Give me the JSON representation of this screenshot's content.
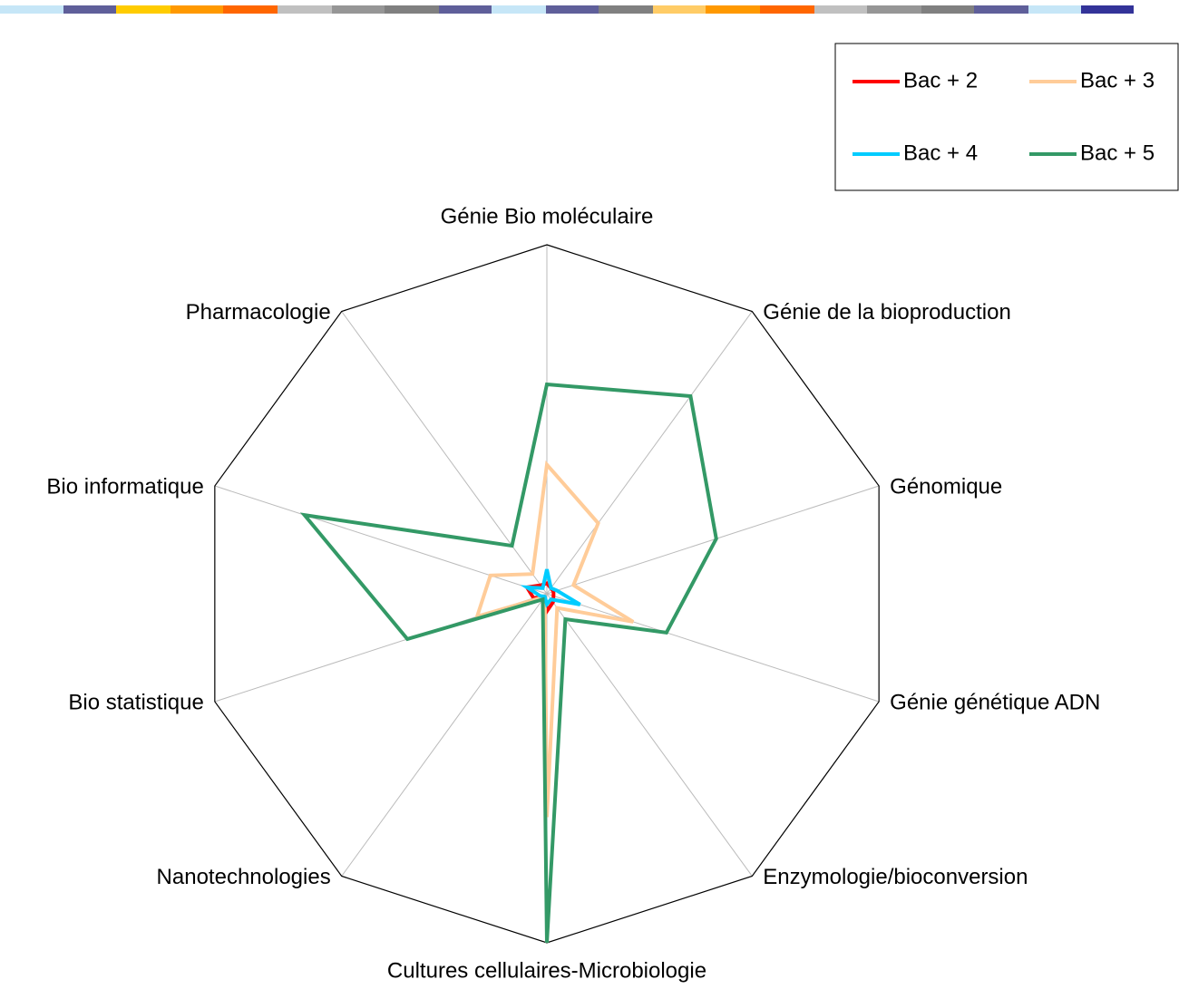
{
  "chart_data": {
    "type": "radar",
    "categories": [
      "Génie Bio moléculaire",
      "Génie de la bioproduction",
      "Génomique",
      "Génie génétique ADN",
      "Enzymologie/bioconversion",
      "Cultures cellulaires-Microbiologie",
      "Nanotechnologies",
      "Bio statistique",
      "Bio informatique",
      "Pharmacologie"
    ],
    "series": [
      {
        "name": "Bac + 2",
        "color": "#ff0000",
        "values": [
          3,
          2,
          2,
          2,
          3,
          5,
          1,
          4,
          6,
          3
        ]
      },
      {
        "name": "Bac + 3",
        "color": "#ffcc99",
        "values": [
          37,
          25,
          8,
          26,
          5,
          64,
          1,
          21,
          17,
          7
        ]
      },
      {
        "name": "Bac + 4",
        "color": "#00ccff",
        "values": [
          7,
          2,
          3,
          10,
          2,
          3,
          1,
          2,
          6,
          2
        ]
      },
      {
        "name": "Bac + 5",
        "color": "#339966",
        "values": [
          60,
          70,
          51,
          36,
          9,
          100,
          2,
          42,
          73,
          17
        ]
      }
    ],
    "ylim": [
      0,
      100
    ],
    "grid": true,
    "legend": "top-right"
  }
}
